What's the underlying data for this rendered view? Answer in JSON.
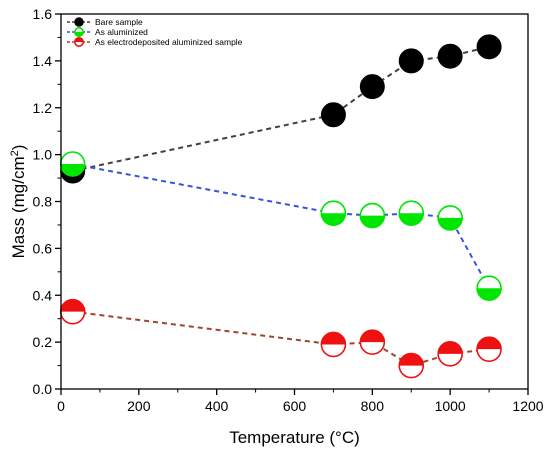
{
  "chart_data": {
    "type": "scatter",
    "title": "",
    "xlabel": "Temperature (°C)",
    "ylabel_main": "Mass (mg/cm",
    "ylabel_sup": "2",
    "ylabel_close": ")",
    "xlim": [
      0,
      1200
    ],
    "ylim": [
      0.0,
      1.6
    ],
    "xticks": [
      0,
      200,
      400,
      600,
      800,
      1000,
      1200
    ],
    "yticks": [
      0.0,
      0.2,
      0.4,
      0.6,
      0.8,
      1.0,
      1.2,
      1.4,
      1.6
    ],
    "grid": false,
    "legend_position": "top-left",
    "series": [
      {
        "name": "Bare sample",
        "marker": "filled-circle",
        "color": "#000000",
        "line_color": "#404040",
        "x": [
          30,
          700,
          800,
          900,
          1000,
          1100
        ],
        "y": [
          0.93,
          1.17,
          1.29,
          1.4,
          1.42,
          1.46
        ]
      },
      {
        "name": "As aluminized",
        "marker": "bottom-half-circle",
        "color": "#00e600",
        "line_color": "#3355dd",
        "x": [
          30,
          700,
          800,
          900,
          1000,
          1100
        ],
        "y": [
          0.96,
          0.75,
          0.74,
          0.75,
          0.73,
          0.43
        ]
      },
      {
        "name": "As electrodeposited aluminized sample",
        "marker": "top-half-circle",
        "color": "#ee1111",
        "line_color": "#a0452e",
        "x": [
          30,
          700,
          800,
          900,
          1000,
          1100
        ],
        "y": [
          0.33,
          0.19,
          0.2,
          0.1,
          0.15,
          0.17
        ]
      }
    ]
  }
}
